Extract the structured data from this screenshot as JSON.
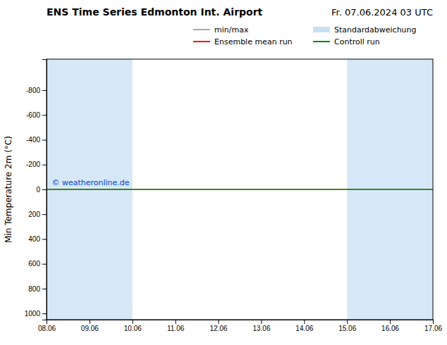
{
  "chart_data": {
    "type": "line",
    "title": "ENS Time Series Edmonton Int. Airport",
    "subtitle": "Fr. 07.06.2024 03 UTC",
    "y_label": "Min Temperature 2m (°C)",
    "categories": [
      "08.06",
      "09.06",
      "10.06",
      "11.06",
      "12.06",
      "13.06",
      "14.06",
      "15.06",
      "16.06",
      "17.06"
    ],
    "ylim": [
      1050,
      -1050
    ],
    "yticks": [
      -800,
      -600,
      -400,
      -200,
      0,
      200,
      400,
      600,
      800,
      1000
    ],
    "series": [
      {
        "name": "min/max",
        "color": "#aaaaaa"
      },
      {
        "name": "Standardabweichung",
        "color": "#c8dff0"
      },
      {
        "name": "Ensemble mean run",
        "color": "#ff0000",
        "value": 0
      },
      {
        "name": "Controll run",
        "color": "#008800",
        "value": 0
      }
    ],
    "spans": [
      {
        "from": "08.06",
        "to": "10.06",
        "color": "#d6e8f7"
      },
      {
        "from": "15.06",
        "to": "17.06",
        "color": "#d6e8f7"
      }
    ],
    "annotations": [
      {
        "text": "© weatheronline.de",
        "color": "#0044cc"
      }
    ],
    "legend": "upper right",
    "grid": false
  }
}
